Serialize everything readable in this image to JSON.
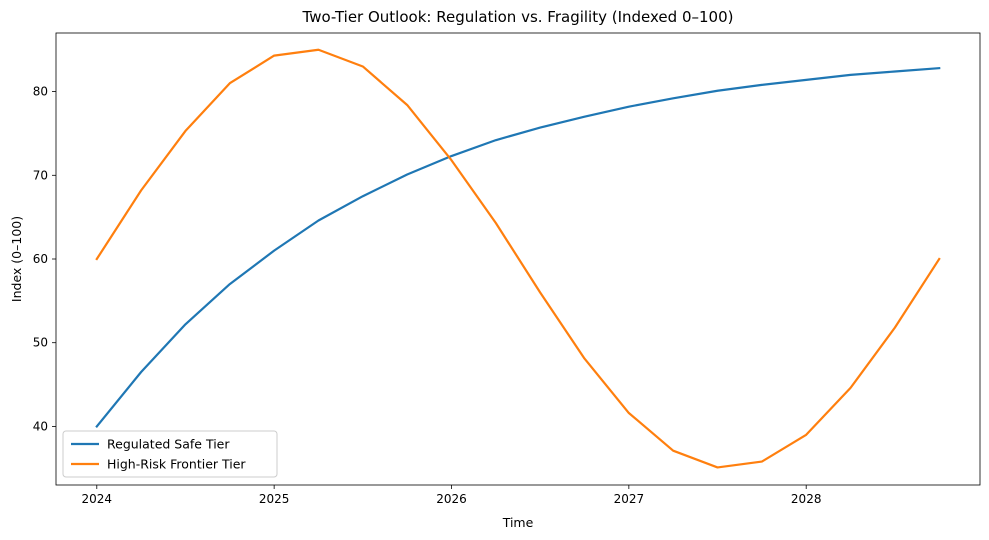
{
  "chart_data": {
    "type": "line",
    "title": "Two-Tier Outlook: Regulation vs. Fragility (Indexed 0–100)",
    "xlabel": "Time",
    "ylabel": "Index (0–100)",
    "x": [
      2024.0,
      2024.25,
      2024.5,
      2024.75,
      2025.0,
      2025.25,
      2025.5,
      2025.75,
      2026.0,
      2026.25,
      2026.5,
      2026.75,
      2027.0,
      2027.25,
      2027.5,
      2027.75,
      2028.0,
      2028.25,
      2028.5,
      2028.75
    ],
    "xlim": [
      2023.77,
      2028.98
    ],
    "ylim": [
      33.0,
      87.0
    ],
    "xticks": [
      2024,
      2025,
      2026,
      2027,
      2028
    ],
    "xtick_labels": [
      "2024",
      "2025",
      "2026",
      "2027",
      "2028"
    ],
    "yticks": [
      40,
      50,
      60,
      70,
      80
    ],
    "ytick_labels": [
      "40",
      "50",
      "60",
      "70",
      "80"
    ],
    "grid": false,
    "legend_position": "lower-left",
    "series": [
      {
        "name": "Regulated Safe Tier",
        "color": "#1f77b4",
        "values": [
          40.0,
          46.5,
          52.2,
          57.0,
          61.0,
          64.6,
          67.5,
          70.1,
          72.3,
          74.2,
          75.7,
          77.0,
          78.2,
          79.2,
          80.1,
          80.8,
          81.4,
          82.0,
          82.4,
          82.8
        ]
      },
      {
        "name": "High-Risk Frontier Tier",
        "color": "#ff7f0e",
        "values": [
          60.0,
          68.2,
          75.3,
          81.0,
          84.3,
          85.0,
          83.0,
          78.4,
          71.8,
          64.3,
          56.0,
          48.1,
          41.6,
          37.1,
          35.1,
          35.8,
          39.0,
          44.6,
          51.8,
          60.0
        ]
      }
    ]
  }
}
